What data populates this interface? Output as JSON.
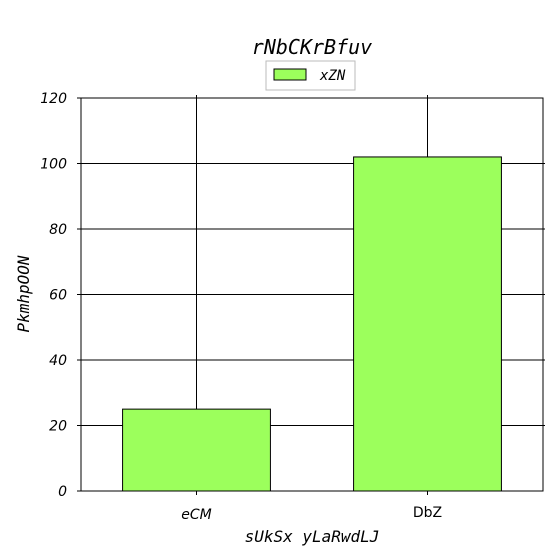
{
  "chart_data": {
    "type": "bar",
    "title": "rNbCKrBfuv",
    "xlabel": "sUkSx yLaRwdLJ",
    "ylabel": "PkmhpOON",
    "categories": [
      "eCM",
      "DbZ"
    ],
    "series": [
      {
        "name": "xZN",
        "values": [
          25,
          102
        ],
        "color": "#9cff5c"
      }
    ],
    "ylim": [
      0,
      120
    ],
    "yticks": [
      0,
      20,
      40,
      60,
      80,
      100,
      120
    ],
    "grid": true,
    "legend": "top-center"
  }
}
